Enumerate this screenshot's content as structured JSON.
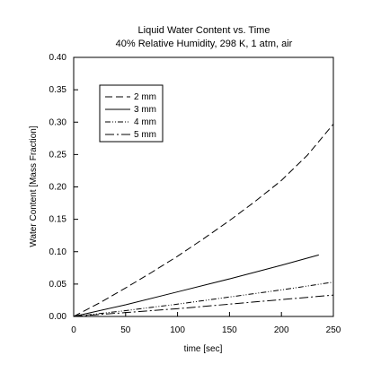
{
  "chart_data": {
    "type": "line",
    "title": "Liquid Water Content vs. Time",
    "subtitle": "40% Relative Humidity, 298 K, 1 atm, air",
    "xlabel": "time [sec]",
    "ylabel": "Water Content [Mass Fraction]",
    "xlim": [
      0,
      250
    ],
    "ylim": [
      0,
      0.4
    ],
    "xticks": [
      "0",
      "50",
      "100",
      "150",
      "200",
      "250"
    ],
    "yticks": [
      "0.00",
      "0.05",
      "0.10",
      "0.15",
      "0.20",
      "0.25",
      "0.30",
      "0.35",
      "0.40"
    ],
    "grid": false,
    "legend_position": "top-left",
    "series": [
      {
        "name": "2 mm",
        "style": "dashed",
        "x": [
          0,
          25,
          50,
          75,
          100,
          125,
          150,
          175,
          200,
          225,
          250
        ],
        "y": [
          0,
          0.021,
          0.044,
          0.068,
          0.093,
          0.12,
          0.148,
          0.178,
          0.21,
          0.249,
          0.297
        ]
      },
      {
        "name": "3 mm",
        "style": "solid",
        "x": [
          0,
          50,
          100,
          150,
          200,
          236
        ],
        "y": [
          0,
          0.018,
          0.038,
          0.058,
          0.079,
          0.095
        ]
      },
      {
        "name": "4 mm",
        "style": "dash-dot-dot",
        "x": [
          0,
          50,
          100,
          150,
          200,
          250
        ],
        "y": [
          0,
          0.009,
          0.019,
          0.03,
          0.041,
          0.053
        ]
      },
      {
        "name": "5 mm",
        "style": "dash-dot",
        "x": [
          0,
          50,
          100,
          150,
          200,
          250
        ],
        "y": [
          0,
          0.006,
          0.012,
          0.019,
          0.026,
          0.033
        ]
      }
    ]
  }
}
